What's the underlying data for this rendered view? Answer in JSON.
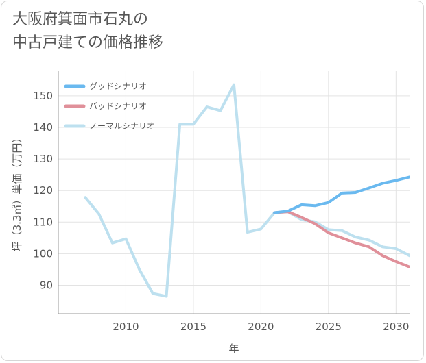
{
  "title": {
    "line1": "大阪府箕面市石丸の",
    "line2": "中古戸建ての価格推移"
  },
  "chart_data": {
    "type": "line",
    "title": "大阪府箕面市石丸の中古戸建ての価格推移",
    "xlabel": "年",
    "ylabel": "坪（3.3㎡）単価（万円）",
    "xlim": [
      2005,
      2031
    ],
    "ylim": [
      81,
      158
    ],
    "xticks": [
      2010,
      2015,
      2020,
      2025,
      2030
    ],
    "yticks": [
      90,
      100,
      110,
      120,
      130,
      140,
      150
    ],
    "grid": true,
    "legend_position": "top-left",
    "series": [
      {
        "name": "グッドシナリオ",
        "color": "#6ab9ef",
        "x": [
          2021,
          2022,
          2023,
          2024,
          2025,
          2026,
          2027,
          2028,
          2029,
          2030,
          2031
        ],
        "values": [
          113,
          113.5,
          115.5,
          115.2,
          116.2,
          119.2,
          119.4,
          120.8,
          122.3,
          123.2,
          124.3
        ]
      },
      {
        "name": "バッドシナリオ",
        "color": "#e0909a",
        "x": [
          2021,
          2022,
          2023,
          2024,
          2025,
          2026,
          2027,
          2028,
          2029,
          2030,
          2031
        ],
        "values": [
          113,
          113.3,
          111.5,
          109.5,
          106.6,
          105,
          103.4,
          102.2,
          99.4,
          97.5,
          95.8
        ]
      },
      {
        "name": "ノーマルシナリオ",
        "color": "#bde0ef",
        "x": [
          2007,
          2008,
          2009,
          2010,
          2011,
          2012,
          2013,
          2014,
          2015,
          2016,
          2017,
          2018,
          2019,
          2020,
          2021,
          2022,
          2023,
          2024,
          2025,
          2026,
          2027,
          2028,
          2029,
          2030,
          2031
        ],
        "values": [
          117.8,
          112.6,
          103.4,
          104.7,
          95,
          87.4,
          86.5,
          141,
          141,
          146.5,
          145.3,
          153.5,
          106.8,
          107.8,
          113,
          113.3,
          110.8,
          110.1,
          107.6,
          107.3,
          105.3,
          104.3,
          102.2,
          101.6,
          99.4
        ]
      }
    ]
  }
}
